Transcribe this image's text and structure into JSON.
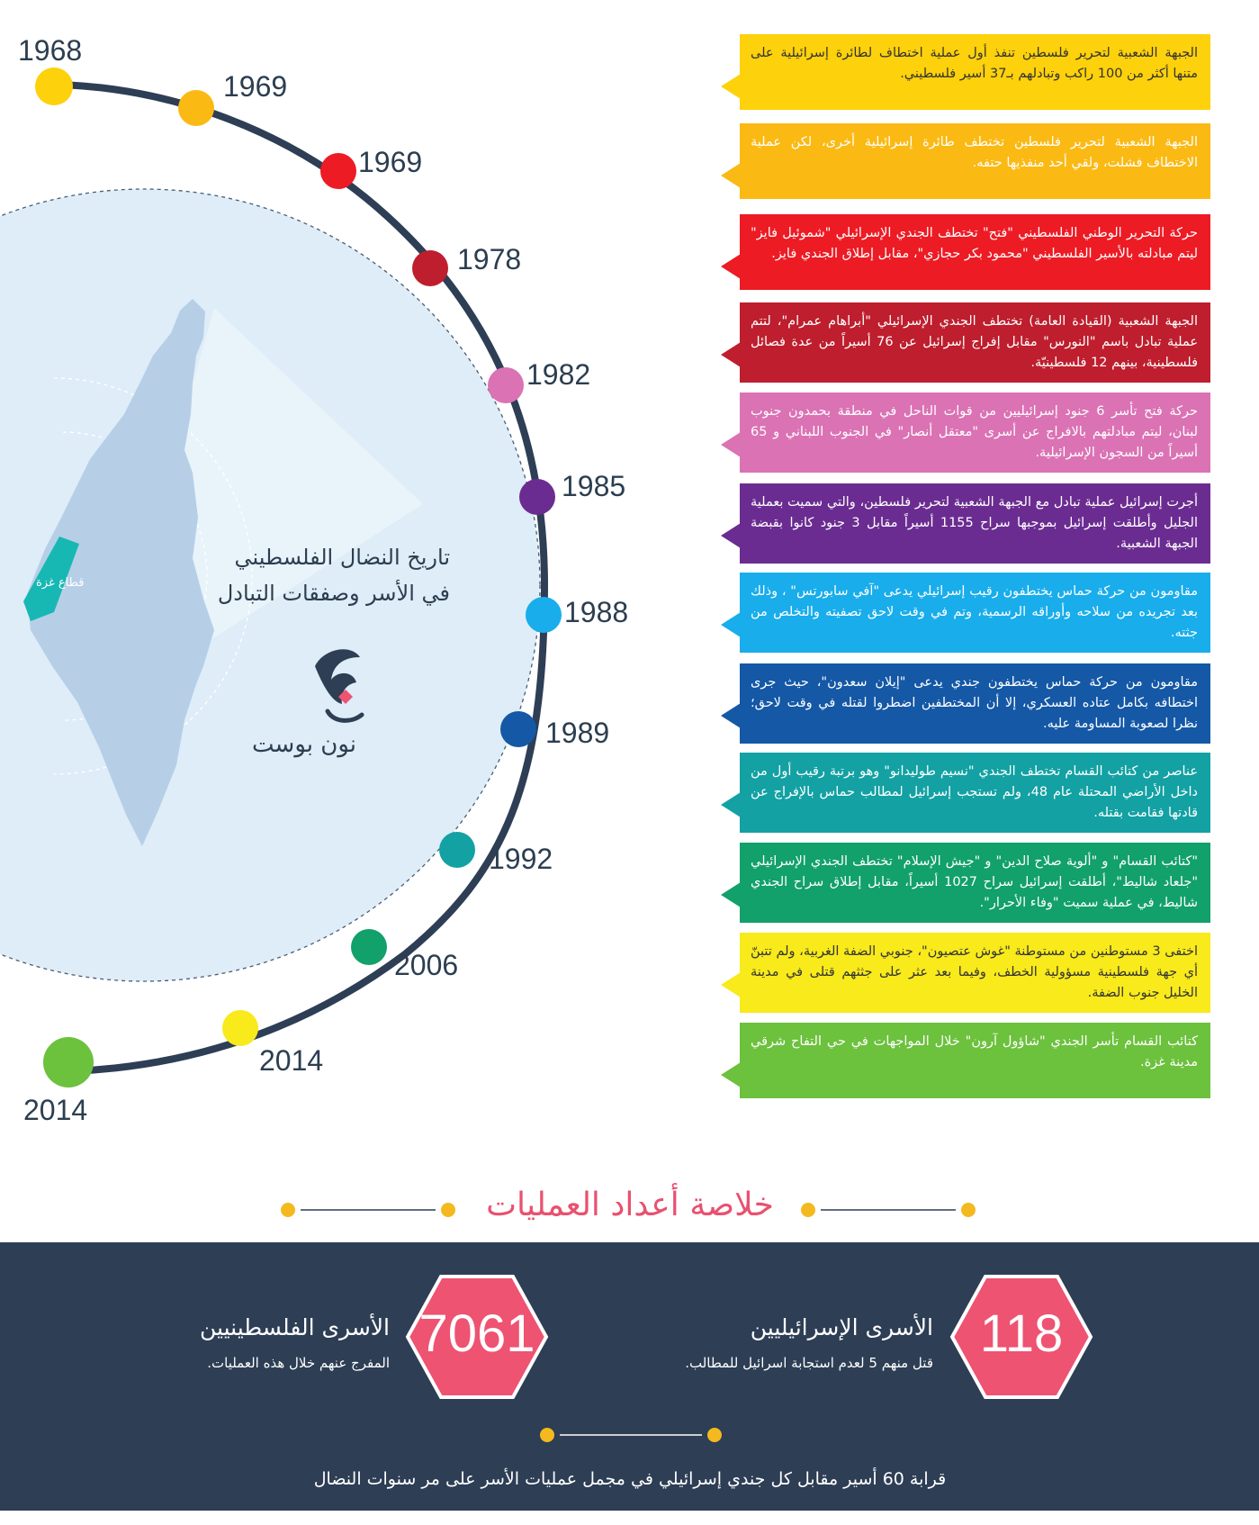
{
  "header_title_lines": [
    "تاريخ النضال الفلسطيني",
    "في الأسر وصفقات التبادل"
  ],
  "brand": "نون بوست",
  "map_label": "قطاع غزة",
  "timeline": [
    {
      "year": "1968",
      "color": "#fdd10b",
      "text": "الجبهة الشعبية لتحرير فلسطين تنفذ أول عملية اختطاف لطائرة إسرائيلية على متنها أكثر من 100 راكب وتبادلهم بـ37 أسير فلسطيني."
    },
    {
      "year": "1969",
      "color": "#fbb913",
      "text": "الجبهة الشعبية لتحرير فلسطين تختطف طائرة إسرائيلية أخرى، لكن عملية الاختطاف فشلت، ولقي أحد منفذيها حتفه."
    },
    {
      "year": "1969",
      "color": "#ed1b24",
      "text": "حركة التحرير الوطني الفلسطيني \"فتح\" تختطف الجندي الإسرائيلي \"شموئيل فايز\" ليتم مبادلته بالأسير الفلسطيني \"محمود بكر حجازي\"، مقابل إطلاق الجندي فايز."
    },
    {
      "year": "1978",
      "color": "#be1e2d",
      "text": "الجبهة الشعبية (القيادة العامة) تختطف الجندي الإسرائيلي \"أبراهام عمرام\"، لتتم عملية تبادل باسم \"النورس\" مقابل إفراج إسرائيل عن 76 أسيراً من عدة فصائل فلسطينية، بينهم 12 فلسطينيّة."
    },
    {
      "year": "1982",
      "color": "#db72b4",
      "text": "حركة فتح تأسر 6 جنود إسرائيليين من قوات الناحل في منطقة بحمدون جنوب لبنان، ليتم مبادلتهم بالافراج عن أسرى \"معتقل أنصار\" في الجنوب اللبناني و 65 أسيراً من السجون الإسرائيلية."
    },
    {
      "year": "1985",
      "color": "#6b2c91",
      "text": "أجرت إسرائيل عملية تبادل مع الجبهة الشعبية لتحرير فلسطين، والتي سميت بعملية الجليل وأطلقت إسرائيل بموجبها سراح 1155 أسيراً مقابل 3 جنود كانوا بقبضة الجبهة الشعبية."
    },
    {
      "year": "1988",
      "color": "#19adeb",
      "text": "مقاومون من حركة حماس يختطفون رقيب إسرائيلي يدعى \"آفي سابورتس\" ، وذلك بعد تجريده من سلاحه وأوراقه الرسمية، وتم في وقت لاحق تصفيته والتخلص من جثته."
    },
    {
      "year": "1989",
      "color": "#1458a6",
      "text": "مقاومون من حركة حماس يختطفون جندي يدعى \"إيلان سعدون\"، حيث جرى اختطافه بكامل عتاده العسكري، إلا أن المختطفين اضطروا لقتله في وقت لاحق؛ نظرا لصعوبة المساومة عليه."
    },
    {
      "year": "1992",
      "color": "#13a1a3",
      "text": "عناصر من كتائب القسام تختطف الجندي \"نسيم طوليدانو\" وهو برتبة رقيب أول من داخل الأراضي المحتلة عام 48، ولم تستجب إسرائيل لمطالب حماس بالإفراج عن قادتها فقامت بقتله."
    },
    {
      "year": "2006",
      "color": "#12a06b",
      "text": "\"كتائب القسام\" و \"ألوية صلاح الدين\" و \"جيش الإسلام\" تختطف الجندي الإسرائيلي \"جلعاد شاليط\"، أطلقت إسرائيل سراح 1027 أسيراً، مقابل إطلاق سراح الجندي شاليط، في عملية سميت \"وفاء الأحرار\"."
    },
    {
      "year": "2014",
      "color": "#f8ea1b",
      "text": "اختفى 3 مستوطنين من مستوطنة \"غوش عتصيون\"، جنوبي الضفة الغربية، ولم تتبنّ أي جهة فلسطينية مسؤولية الخطف، وفيما بعد عثر على جثثهم قتلى في مدينة الخليل جنوب الضفة."
    },
    {
      "year": "2014",
      "color": "#6cc13d",
      "text": "كتائب القسام تأسر الجندي \"شاؤول آرون\" خلال المواجهات في حي التفاح شرقي مدينة غزة."
    }
  ],
  "summary": {
    "title": "خلاصة أعداد العمليات",
    "israeli": {
      "number": "118",
      "title": "الأسرى الإسرائيليين",
      "subtitle": "قتل منهم 5 لعدم استجابة اسرائيل للمطالب."
    },
    "palestinian": {
      "number": "7061",
      "title": "الأسرى الفلسطينيين",
      "subtitle": "المفرج عنهم خلال هذه العمليات."
    },
    "note": "قرابة 60 أسير مقابل كل جندي إسرائيلي في مجمل عمليات الأسر على مر سنوات النضال"
  },
  "colors": {
    "navy": "#2d3e55",
    "accent_pink": "#e8516f",
    "hex_fill": "#ee5372",
    "dot_gold": "#f4b91e",
    "circle_bg": "#deedf8",
    "map_fill": "#b6cfe7",
    "gaza": "#17b8b3"
  }
}
